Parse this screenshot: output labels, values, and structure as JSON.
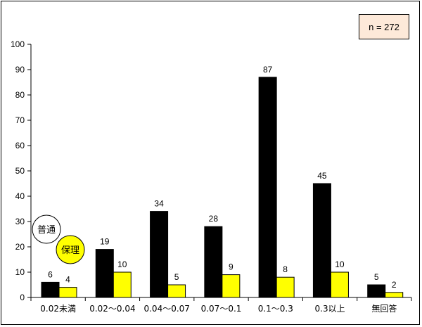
{
  "chart_data": {
    "type": "bar",
    "categories": [
      "0.02未満",
      "0.02～0.04",
      "0.04～0.07",
      "0.07～0.1",
      "0.1～0.3",
      "0.3以上",
      "無回答"
    ],
    "series": [
      {
        "name": "普通",
        "values": [
          6,
          19,
          34,
          28,
          87,
          45,
          5
        ],
        "color": "#000000"
      },
      {
        "name": "保理",
        "values": [
          4,
          10,
          5,
          9,
          8,
          10,
          2
        ],
        "color": "#ffff00"
      }
    ],
    "ylim": [
      0,
      100
    ],
    "yticks": [
      0,
      10,
      20,
      30,
      40,
      50,
      60,
      70,
      80,
      90,
      100
    ],
    "grid": false,
    "legend_placement": "left",
    "annotation": "n = 272"
  }
}
